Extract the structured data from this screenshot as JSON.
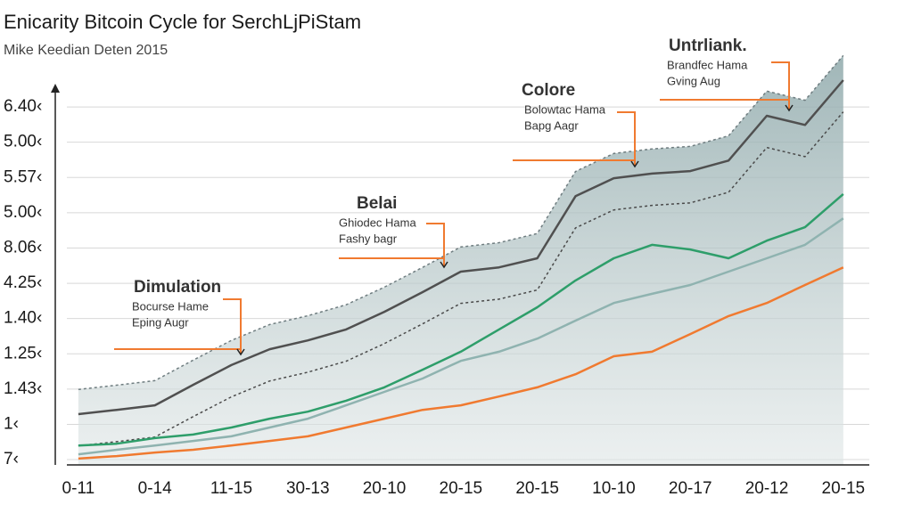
{
  "chart_data": {
    "type": "line",
    "title": "Enicarity Bitcoin Cycle for SerchLjPiStam",
    "subtitle": "Mike Keedian Deten 2015",
    "x": [
      0,
      0.5,
      1,
      1.5,
      2,
      2.5,
      3,
      3.5,
      4,
      4.5,
      5,
      5.5,
      6,
      6.5,
      7,
      7.5,
      8,
      8.5,
      9,
      9.5,
      10
    ],
    "xlim": [
      -0.15,
      10.34
    ],
    "xticks": [
      {
        "value": 0,
        "label": "0-11"
      },
      {
        "value": 1,
        "label": "0-14"
      },
      {
        "value": 2,
        "label": "11-15"
      },
      {
        "value": 3,
        "label": "30-13"
      },
      {
        "value": 4,
        "label": "20-10"
      },
      {
        "value": 5,
        "label": "20-15"
      },
      {
        "value": 6,
        "label": "20-15"
      },
      {
        "value": 7,
        "label": "10-10"
      },
      {
        "value": 8,
        "label": "20-17"
      },
      {
        "value": 9,
        "label": "20-12"
      },
      {
        "value": 10,
        "label": "20-15"
      }
    ],
    "ylim": [
      -0.15,
      12.3
    ],
    "yticks": [
      {
        "value": 0,
        "label": "7‹"
      },
      {
        "value": 1,
        "label": "1‹"
      },
      {
        "value": 2,
        "label": "1.43‹"
      },
      {
        "value": 3,
        "label": "1.25‹"
      },
      {
        "value": 4,
        "label": "1.40‹"
      },
      {
        "value": 5,
        "label": "4.25‹"
      },
      {
        "value": 6,
        "label": "8.06‹"
      },
      {
        "value": 7,
        "label": "5.00‹"
      },
      {
        "value": 8,
        "label": "5.57‹"
      },
      {
        "value": 9,
        "label": "5.00‹"
      },
      {
        "value": 10,
        "label": "6.40‹"
      }
    ],
    "grid": true,
    "series": [
      {
        "color": "#6f7d80",
        "style": "dotted",
        "fill": true,
        "values": [
          1.99,
          2.11,
          2.24,
          2.82,
          3.38,
          3.83,
          4.08,
          4.39,
          4.89,
          5.45,
          6.03,
          6.15,
          6.41,
          8.17,
          8.68,
          8.81,
          8.88,
          9.18,
          10.45,
          10.19,
          11.46
        ]
      },
      {
        "color": "#4a4a4a",
        "style": "dotted",
        "values": [
          0.39,
          0.51,
          0.64,
          1.22,
          1.78,
          2.23,
          2.48,
          2.79,
          3.29,
          3.85,
          4.43,
          4.55,
          4.81,
          6.57,
          7.08,
          7.21,
          7.28,
          7.58,
          8.85,
          8.59,
          9.86
        ]
      },
      {
        "color": "#8fb3b0",
        "values": [
          0.15,
          0.28,
          0.4,
          0.53,
          0.66,
          0.91,
          1.16,
          1.54,
          1.92,
          2.3,
          2.8,
          3.06,
          3.43,
          3.94,
          4.44,
          4.7,
          4.95,
          5.33,
          5.71,
          6.09,
          6.84
        ]
      },
      {
        "color": "#f07a30",
        "values": [
          0.03,
          0.1,
          0.2,
          0.28,
          0.4,
          0.53,
          0.66,
          0.91,
          1.16,
          1.41,
          1.54,
          1.79,
          2.05,
          2.42,
          2.93,
          3.06,
          3.56,
          4.07,
          4.44,
          4.95,
          5.45
        ]
      },
      {
        "color": "#2e9e6a",
        "values": [
          0.4,
          0.45,
          0.61,
          0.71,
          0.91,
          1.16,
          1.36,
          1.67,
          2.05,
          2.55,
          3.06,
          3.69,
          4.32,
          5.08,
          5.71,
          6.09,
          5.96,
          5.71,
          6.21,
          6.59,
          7.53
        ]
      },
      {
        "color": "#505050",
        "values": [
          1.29,
          1.41,
          1.54,
          2.12,
          2.68,
          3.13,
          3.38,
          3.69,
          4.19,
          4.75,
          5.33,
          5.45,
          5.71,
          7.47,
          7.98,
          8.11,
          8.18,
          8.48,
          9.75,
          9.49,
          10.76
        ]
      }
    ],
    "annotations": [
      {
        "title": "Dimulation",
        "lines": [
          "Bocurse Hame",
          "Eping Augr"
        ]
      },
      {
        "title": "Belai",
        "lines": [
          "Ghiodec Hama",
          "Fashy bagr"
        ]
      },
      {
        "title": "Colore",
        "lines": [
          "Bolowtac Hama",
          "Bapg Aagr"
        ]
      },
      {
        "title": "Untrliank.",
        "lines": [
          "Brandfec Hama",
          "Gving Aug"
        ]
      }
    ]
  }
}
